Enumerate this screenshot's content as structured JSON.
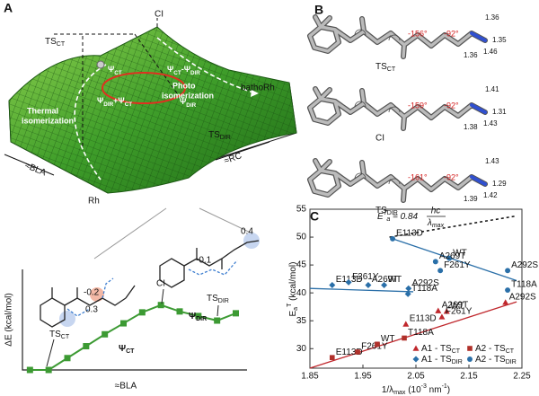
{
  "panel_a": {
    "label": "A",
    "ci": "CI",
    "ts_ct": [
      "TS",
      "CT"
    ],
    "psi_ct": [
      "Ψ",
      "CT"
    ],
    "psi_diff": [
      "Ψ",
      "CT",
      "-Ψ",
      "DIR"
    ],
    "photo": "Photo",
    "photo_2": "isomerization",
    "thermal": "Thermal",
    "thermal_2": "isomerization",
    "psi_sum": [
      "Ψ",
      "DIR",
      "+Ψ",
      "CT"
    ],
    "psi_dir": [
      "Ψ",
      "DIR"
    ],
    "batho": "bathoRh",
    "ts_dir": [
      "TS",
      "DIR"
    ],
    "bla": "≈BLA",
    "rc": "≈RC",
    "rh": "Rh"
  },
  "panel_b": {
    "label": "B",
    "structures": [
      {
        "name": [
          "TS",
          "CT"
        ],
        "angles": [
          "-156°",
          "-92°"
        ],
        "bonds": [
          "1.36",
          "1.35",
          "1.46",
          "1.36"
        ]
      },
      {
        "name": "CI",
        "angles": [
          "-159°",
          "-92°"
        ],
        "bonds": [
          "1.41",
          "1.31",
          "1.43",
          "1.38"
        ]
      },
      {
        "name": [
          "TS",
          "DIR"
        ],
        "angles": [
          "-161°",
          "-92°"
        ],
        "bonds": [
          "1.43",
          "1.29",
          "1.42",
          "1.39"
        ]
      }
    ]
  },
  "chart_data": [
    {
      "type": "line",
      "ylabel": "ΔE (kcal/mol)",
      "xlabel": "≈BLA",
      "color": "#3c9a33",
      "x": [
        0,
        1,
        2,
        3,
        4,
        5,
        6,
        7,
        8,
        9,
        10,
        11
      ],
      "values": [
        0,
        0,
        2.6,
        5.2,
        7.8,
        10.2,
        12.6,
        14.2,
        12.8,
        11.8,
        10.8,
        12.4
      ],
      "xlim": [
        -0.4,
        11.6
      ],
      "ylim": [
        0,
        22
      ],
      "charges": [
        "-0.2",
        "0.3",
        "-0.1",
        "0.4"
      ],
      "point_labels": {
        "ci": "CI",
        "ts_ct": [
          "TS",
          "CT"
        ],
        "ts_dir": [
          "TS",
          "DIR"
        ]
      },
      "curve_labels": {
        "psi_ct": [
          "Ψ",
          "CT"
        ],
        "psi_dir": [
          "Ψ",
          "DIR"
        ]
      }
    },
    {
      "type": "scatter",
      "label": "C",
      "xlabel": [
        "1/λ",
        "max",
        " (10",
        "-3",
        " nm",
        "-1",
        ")"
      ],
      "ylabel": [
        "E",
        "a",
        "T",
        " (kcal/mol)"
      ],
      "xlim": [
        1.85,
        2.25
      ],
      "xticks": [
        1.85,
        1.95,
        2.05,
        2.15,
        2.25
      ],
      "ylim": [
        26.5,
        55
      ],
      "yticks": [
        30,
        35,
        40,
        45,
        50,
        55
      ],
      "legend": "lower right",
      "series": [
        {
          "name": [
            "A1 - TS",
            "CT"
          ],
          "color": "#c0282d",
          "marker": "triangle",
          "x": [
            2.031,
            2.108,
            2.092,
            2.099,
            2.219
          ],
          "values": [
            34.4,
            36.7,
            36.8,
            35.7,
            38.3
          ],
          "labels": [
            "E113D",
            "WT",
            "A269T",
            "F261Y",
            "A292S"
          ]
        },
        {
          "name": [
            "A2 - TS",
            "CT"
          ],
          "color": "#b0302a",
          "marker": "square",
          "x": [
            1.892,
            1.94,
            1.977,
            2.028
          ],
          "values": [
            28.4,
            29.4,
            30.8,
            31.9
          ],
          "labels": [
            "E113D",
            "F261Y",
            "WT",
            "T118A"
          ]
        },
        {
          "name": [
            "A1 - TS",
            "DIR"
          ],
          "color": "#2a6fa8",
          "marker": "diamond",
          "x": [
            1.892,
            1.923,
            1.96,
            1.99,
            2.036,
            2.035
          ],
          "values": [
            41.4,
            41.9,
            41.4,
            41.4,
            40.8,
            39.8
          ],
          "labels": [
            "E113D",
            "F261Y",
            "A269T",
            "WT",
            "A292S",
            "T118A"
          ]
        },
        {
          "name": [
            "A2 - TS",
            "DIR"
          ],
          "color": "#2a6fa8",
          "marker": "circle",
          "x": [
            2.006,
            2.113,
            2.087,
            2.096,
            2.223,
            2.223
          ],
          "values": [
            49.7,
            46.2,
            45.6,
            44.0,
            44.0,
            40.5
          ],
          "labels": [
            "E113D",
            "WT",
            "A269T",
            "F261Y",
            "A292S",
            "T118A"
          ]
        }
      ],
      "trend_lines": [
        {
          "color": "#c0282d",
          "x": [
            1.85,
            2.24
          ],
          "values": [
            26.5,
            38.4
          ]
        },
        {
          "color": "#2a6fa8",
          "x": [
            2.006,
            2.24
          ],
          "values": [
            49.7,
            42.2
          ]
        },
        {
          "color": "#2a6fa8",
          "x": [
            1.85,
            2.045
          ],
          "values": [
            40.8,
            40.2
          ]
        }
      ],
      "reference_line": {
        "x": [
          2.0,
          2.24
        ],
        "values": [
          50,
          53.8
        ],
        "equation": {
          "parts": [
            "E",
            "T",
            "a",
            " = 0.84"
          ],
          "numerator": "hc",
          "denominator": [
            "λ",
            "max"
          ]
        }
      }
    }
  ]
}
